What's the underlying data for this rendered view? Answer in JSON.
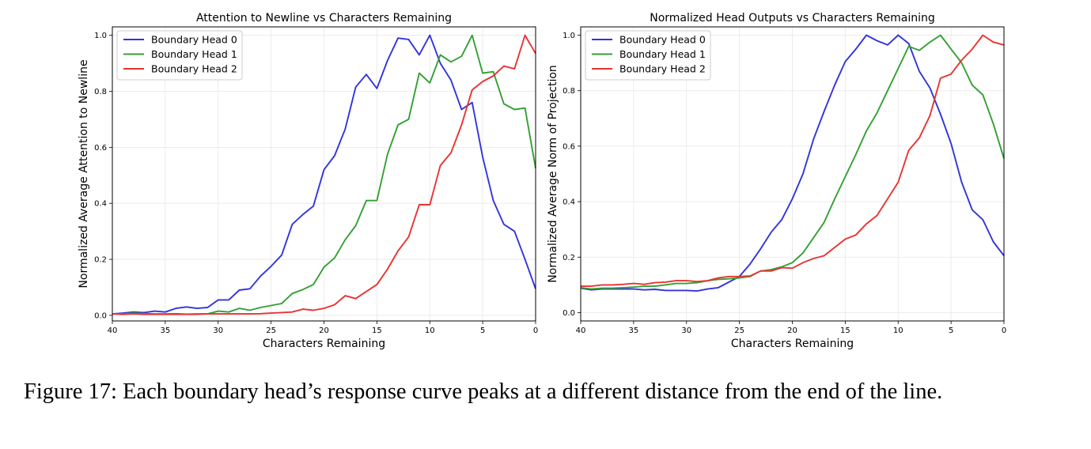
{
  "caption": "Figure 17: Each boundary head’s response curve peaks at a different distance from the end of the line.",
  "chart_data": [
    {
      "type": "line",
      "title": "Attention to Newline vs Characters Remaining",
      "xlabel": "Characters Remaining",
      "ylabel": "Normalized Average Attention to Newline",
      "xlim": [
        40,
        0
      ],
      "ylim": [
        -0.02,
        1.03
      ],
      "x_ticks": [
        40,
        35,
        30,
        25,
        20,
        15,
        10,
        5,
        0
      ],
      "y_ticks": [
        0.0,
        0.2,
        0.4,
        0.6,
        0.8,
        1.0
      ],
      "grid": true,
      "legend_position": "top-left",
      "x": [
        40,
        39,
        38,
        37,
        36,
        35,
        34,
        33,
        32,
        31,
        30,
        29,
        28,
        27,
        26,
        25,
        24,
        23,
        22,
        21,
        20,
        19,
        18,
        17,
        16,
        15,
        14,
        13,
        12,
        11,
        10,
        9,
        8,
        7,
        6,
        5,
        4,
        3,
        2,
        1,
        0
      ],
      "series": [
        {
          "name": "Boundary Head 0",
          "color": "#3333dd",
          "values": [
            0.005,
            0.008,
            0.012,
            0.01,
            0.015,
            0.012,
            0.025,
            0.03,
            0.025,
            0.028,
            0.055,
            0.055,
            0.09,
            0.095,
            0.14,
            0.175,
            0.215,
            0.325,
            0.36,
            0.39,
            0.52,
            0.57,
            0.665,
            0.815,
            0.86,
            0.81,
            0.91,
            0.99,
            0.985,
            0.93,
            1.0,
            0.9,
            0.84,
            0.735,
            0.76,
            0.565,
            0.41,
            0.325,
            0.3,
            0.2,
            0.095
          ]
        },
        {
          "name": "Boundary Head 1",
          "color": "#33a033",
          "values": [
            0.005,
            0.005,
            0.008,
            0.006,
            0.005,
            0.005,
            0.006,
            0.004,
            0.005,
            0.005,
            0.015,
            0.012,
            0.025,
            0.018,
            0.028,
            0.035,
            0.042,
            0.078,
            0.092,
            0.11,
            0.172,
            0.205,
            0.27,
            0.32,
            0.41,
            0.41,
            0.575,
            0.68,
            0.7,
            0.865,
            0.83,
            0.93,
            0.905,
            0.925,
            1.0,
            0.865,
            0.87,
            0.755,
            0.735,
            0.74,
            0.525
          ]
        },
        {
          "name": "Boundary Head 2",
          "color": "#e83333",
          "values": [
            0.005,
            0.004,
            0.005,
            0.004,
            0.004,
            0.004,
            0.004,
            0.004,
            0.004,
            0.005,
            0.005,
            0.005,
            0.005,
            0.005,
            0.006,
            0.008,
            0.01,
            0.012,
            0.022,
            0.018,
            0.025,
            0.038,
            0.07,
            0.06,
            0.085,
            0.11,
            0.165,
            0.23,
            0.28,
            0.395,
            0.395,
            0.535,
            0.58,
            0.68,
            0.805,
            0.835,
            0.855,
            0.89,
            0.88,
            1.0,
            0.935
          ]
        }
      ]
    },
    {
      "type": "line",
      "title": "Normalized Head Outputs vs Characters Remaining",
      "xlabel": "Characters Remaining",
      "ylabel": "Normalized Average Norm of Projection",
      "xlim": [
        40,
        0
      ],
      "ylim": [
        -0.03,
        1.03
      ],
      "x_ticks": [
        40,
        35,
        30,
        25,
        20,
        15,
        10,
        5,
        0
      ],
      "y_ticks": [
        0.0,
        0.2,
        0.4,
        0.6,
        0.8,
        1.0
      ],
      "grid": true,
      "legend_position": "top-left",
      "x": [
        40,
        39,
        38,
        37,
        36,
        35,
        34,
        33,
        32,
        31,
        30,
        29,
        28,
        27,
        26,
        25,
        24,
        23,
        22,
        21,
        20,
        19,
        18,
        17,
        16,
        15,
        14,
        13,
        12,
        11,
        10,
        9,
        8,
        7,
        6,
        5,
        4,
        3,
        2,
        1,
        0
      ],
      "series": [
        {
          "name": "Boundary Head 0",
          "color": "#3333dd",
          "values": [
            0.088,
            0.082,
            0.085,
            0.085,
            0.085,
            0.085,
            0.082,
            0.084,
            0.08,
            0.08,
            0.08,
            0.078,
            0.085,
            0.09,
            0.11,
            0.13,
            0.175,
            0.23,
            0.29,
            0.335,
            0.41,
            0.5,
            0.625,
            0.725,
            0.82,
            0.905,
            0.95,
            1.0,
            0.98,
            0.965,
            1.0,
            0.97,
            0.87,
            0.81,
            0.715,
            0.61,
            0.47,
            0.37,
            0.335,
            0.255,
            0.205
          ]
        },
        {
          "name": "Boundary Head 1",
          "color": "#33a033",
          "values": [
            0.09,
            0.085,
            0.088,
            0.088,
            0.09,
            0.092,
            0.095,
            0.095,
            0.1,
            0.105,
            0.105,
            0.108,
            0.115,
            0.12,
            0.122,
            0.125,
            0.13,
            0.15,
            0.155,
            0.165,
            0.18,
            0.215,
            0.27,
            0.325,
            0.41,
            0.49,
            0.57,
            0.655,
            0.72,
            0.8,
            0.88,
            0.96,
            0.945,
            0.975,
            1.0,
            0.95,
            0.9,
            0.82,
            0.785,
            0.68,
            0.555
          ]
        },
        {
          "name": "Boundary Head 2",
          "color": "#e83333",
          "values": [
            0.095,
            0.095,
            0.1,
            0.1,
            0.102,
            0.105,
            0.102,
            0.108,
            0.11,
            0.115,
            0.115,
            0.112,
            0.115,
            0.125,
            0.13,
            0.13,
            0.132,
            0.15,
            0.15,
            0.162,
            0.16,
            0.18,
            0.195,
            0.205,
            0.235,
            0.265,
            0.28,
            0.32,
            0.35,
            0.41,
            0.47,
            0.585,
            0.63,
            0.71,
            0.845,
            0.86,
            0.91,
            0.95,
            1.0,
            0.975,
            0.965
          ]
        }
      ]
    }
  ]
}
